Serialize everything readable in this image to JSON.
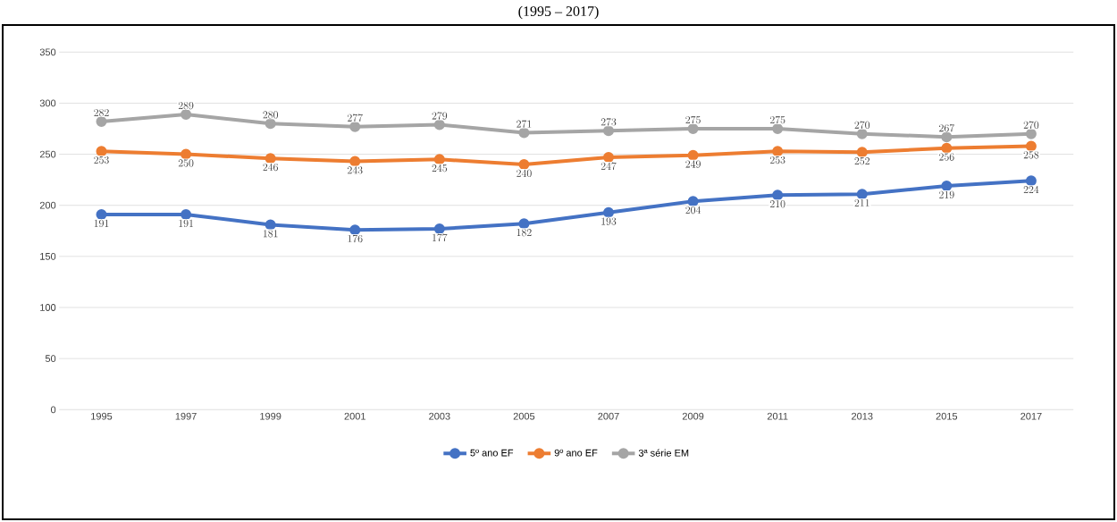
{
  "chart_data": {
    "type": "line",
    "title": "(1995 – 2017)",
    "categories": [
      "1995",
      "1997",
      "1999",
      "2001",
      "2003",
      "2005",
      "2007",
      "2009",
      "2011",
      "2013",
      "2015",
      "2017"
    ],
    "series": [
      {
        "name": "5º ano EF",
        "color": "#4472c4",
        "values": [
          191,
          191,
          181,
          176,
          177,
          182,
          193,
          204,
          210,
          211,
          219,
          224
        ]
      },
      {
        "name": "9º ano EF",
        "color": "#ed7d31",
        "values": [
          253,
          250,
          246,
          243,
          245,
          240,
          247,
          249,
          253,
          252,
          256,
          258
        ]
      },
      {
        "name": "3ª série EM",
        "color": "#a5a5a5",
        "values": [
          282,
          289,
          280,
          277,
          279,
          271,
          273,
          275,
          275,
          270,
          267,
          270
        ]
      }
    ],
    "ylim": [
      0,
      350
    ],
    "yticks": [
      0,
      50,
      100,
      150,
      200,
      250,
      300,
      350
    ],
    "grid": "y",
    "legend": "bottom",
    "marker": "circle",
    "line_style": "solid",
    "data_labels": true
  }
}
